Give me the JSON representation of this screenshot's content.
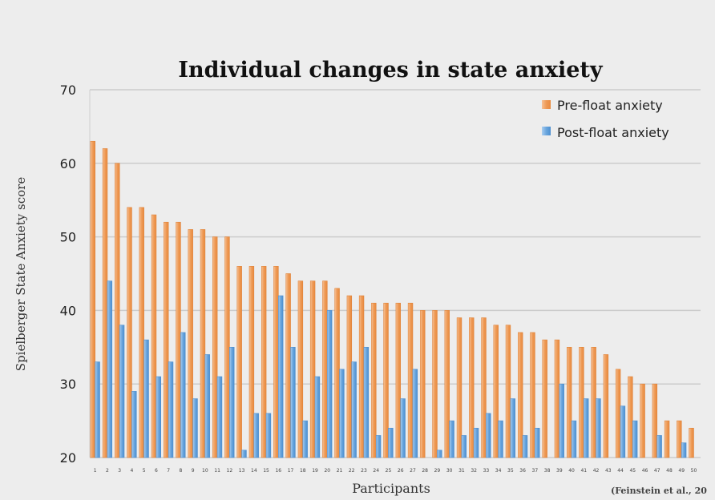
{
  "chart_data": {
    "type": "bar",
    "title": "Individual changes in state anxiety",
    "xlabel": "Participants",
    "ylabel": "Spielberger State Anxiety score",
    "ylim": [
      20,
      70
    ],
    "yticks": [
      20,
      30,
      40,
      50,
      60,
      70
    ],
    "grid": true,
    "legend_position": "top-right",
    "source_note": "(Feinstein et al., 20",
    "categories": [
      "1",
      "2",
      "3",
      "4",
      "5",
      "6",
      "7",
      "8",
      "9",
      "10",
      "11",
      "12",
      "13",
      "14",
      "15",
      "16",
      "17",
      "18",
      "19",
      "20",
      "21",
      "22",
      "23",
      "24",
      "25",
      "26",
      "27",
      "28",
      "29",
      "30",
      "31",
      "32",
      "33",
      "34",
      "35",
      "36",
      "37",
      "38",
      "39",
      "40",
      "41",
      "42",
      "43",
      "44",
      "45",
      "46",
      "47",
      "48",
      "49",
      "50"
    ],
    "series": [
      {
        "name": "Pre-float anxiety",
        "color": "#f0a060",
        "values": [
          63,
          62,
          60,
          54,
          54,
          53,
          52,
          52,
          51,
          51,
          50,
          50,
          46,
          46,
          46,
          46,
          45,
          44,
          44,
          44,
          43,
          42,
          42,
          41,
          41,
          41,
          41,
          40,
          40,
          40,
          39,
          39,
          39,
          38,
          38,
          37,
          37,
          36,
          36,
          35,
          35,
          35,
          34,
          32,
          31,
          30,
          30,
          25,
          25,
          24
        ]
      },
      {
        "name": "Post-float anxiety",
        "color": "#6fa8dc",
        "values": [
          33,
          44,
          38,
          29,
          36,
          31,
          33,
          37,
          28,
          34,
          31,
          35,
          21,
          26,
          26,
          42,
          35,
          25,
          31,
          40,
          32,
          33,
          35,
          23,
          24,
          28,
          32,
          20,
          21,
          25,
          23,
          24,
          26,
          25,
          28,
          23,
          24,
          20,
          30,
          25,
          28,
          28,
          20,
          27,
          25,
          20,
          23,
          20,
          22,
          20
        ]
      }
    ]
  }
}
